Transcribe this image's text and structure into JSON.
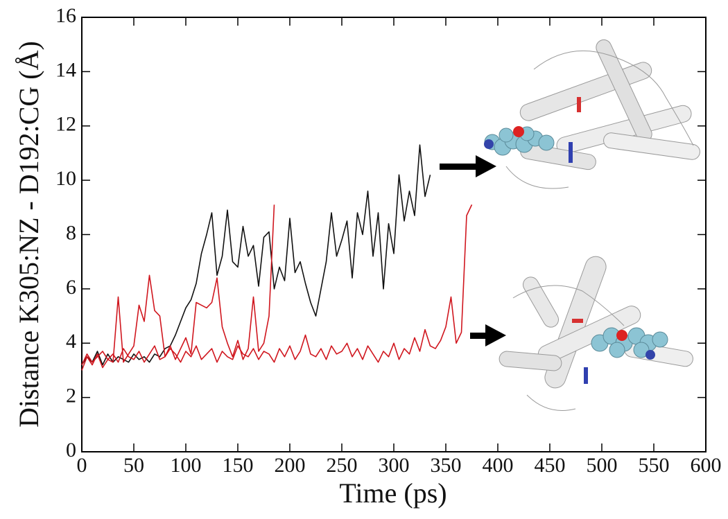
{
  "chart_data": {
    "type": "line",
    "xlabel": "Time (ps)",
    "ylabel": "Distance K305:NZ - D192:CG (Å)",
    "x": [
      0,
      5,
      10,
      15,
      20,
      25,
      30,
      35,
      40,
      45,
      50,
      55,
      60,
      65,
      70,
      75,
      80,
      85,
      90,
      95,
      100,
      105,
      110,
      115,
      120,
      125,
      130,
      135,
      140,
      145,
      150,
      155,
      160,
      165,
      170,
      175,
      180,
      185,
      190,
      195,
      200,
      205,
      210,
      215,
      220,
      225,
      230,
      235,
      240,
      245,
      250,
      255,
      260,
      265,
      270,
      275,
      280,
      285,
      290,
      295,
      300,
      305,
      310,
      315,
      320,
      325,
      330,
      335,
      340,
      345,
      350,
      355,
      360,
      365,
      370,
      375
    ],
    "series": [
      {
        "color": "#111111",
        "values": [
          3.2,
          3.5,
          3.3,
          3.7,
          3.2,
          3.6,
          3.3,
          3.5,
          3.4,
          3.3,
          3.6,
          3.4,
          3.5,
          3.3,
          3.6,
          3.5,
          3.8,
          3.9,
          4.3,
          4.8,
          5.3,
          5.6,
          6.2,
          7.3,
          8.0,
          8.8,
          6.5,
          7.2,
          8.9,
          7.0,
          6.8,
          8.3,
          7.2,
          7.6,
          6.1,
          7.9,
          8.1,
          6.0,
          6.8,
          6.3,
          8.6,
          6.6,
          7.0,
          6.2,
          5.5,
          5.0,
          6.0,
          7.0,
          8.8,
          7.2,
          7.8,
          8.5,
          6.4,
          8.8,
          8.0,
          9.6,
          7.2,
          8.8,
          6.0,
          8.4,
          7.3,
          10.2,
          8.5,
          9.6,
          8.7,
          11.3,
          9.4,
          10.2,
          null,
          null,
          null,
          null,
          null,
          null,
          null,
          null
        ]
      },
      {
        "color": "#d0161e",
        "values": [
          3.0,
          3.5,
          3.2,
          3.6,
          3.1,
          3.4,
          3.3,
          5.7,
          3.3,
          3.6,
          3.9,
          5.4,
          4.8,
          6.5,
          5.2,
          5.0,
          3.5,
          3.9,
          3.4,
          3.8,
          4.2,
          3.6,
          5.5,
          5.4,
          5.3,
          5.5,
          6.4,
          4.6,
          4.0,
          3.5,
          4.1,
          3.4,
          3.8,
          5.7,
          3.7,
          4.0,
          5.0,
          9.1,
          null,
          null,
          null,
          null,
          null,
          null,
          null,
          null,
          null,
          null,
          null,
          null,
          null,
          null,
          null,
          null,
          null,
          null,
          null,
          null,
          null,
          null,
          null,
          null,
          null,
          null,
          null,
          null,
          null,
          null,
          null,
          null,
          null,
          null,
          null,
          null,
          null,
          null
        ]
      },
      {
        "color": "#d0161e",
        "values": [
          3.2,
          3.6,
          3.3,
          3.5,
          3.7,
          3.4,
          3.6,
          3.3,
          3.8,
          3.5,
          3.4,
          3.7,
          3.3,
          3.6,
          3.9,
          3.4,
          3.5,
          3.8,
          3.6,
          3.3,
          3.7,
          3.5,
          3.9,
          3.4,
          3.6,
          3.8,
          3.3,
          3.7,
          3.5,
          3.4,
          3.9,
          3.6,
          3.5,
          3.8,
          3.4,
          3.7,
          3.6,
          3.3,
          3.8,
          3.5,
          3.9,
          3.4,
          3.7,
          4.3,
          3.6,
          3.5,
          3.8,
          3.4,
          3.9,
          3.6,
          3.7,
          4.0,
          3.5,
          3.8,
          3.4,
          3.9,
          3.6,
          3.3,
          3.7,
          3.5,
          4.0,
          3.4,
          3.8,
          3.6,
          4.2,
          3.7,
          4.5,
          3.9,
          3.8,
          4.1,
          4.6,
          5.7,
          4.0,
          4.4,
          8.7,
          9.1
        ]
      }
    ],
    "xlim": [
      0,
      600
    ],
    "xticks": [
      0,
      50,
      100,
      150,
      200,
      250,
      300,
      350,
      400,
      450,
      500,
      550,
      600
    ],
    "ylim": [
      0,
      16
    ],
    "yticks": [
      0,
      2,
      4,
      6,
      8,
      10,
      12,
      14,
      16
    ]
  }
}
